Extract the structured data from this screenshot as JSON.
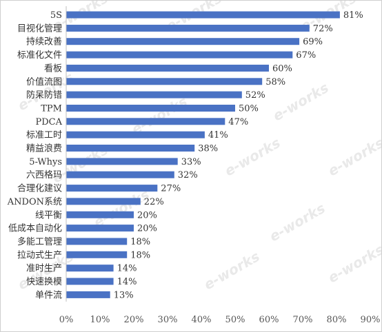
{
  "chart_data": {
    "type": "bar",
    "orientation": "horizontal",
    "title": "",
    "xlabel": "",
    "ylabel": "",
    "categories": [
      "5S",
      "目视化管理",
      "持续改善",
      "标准化文件",
      "看板",
      "价值流图",
      "防呆防错",
      "TPM",
      "PDCA",
      "标准工时",
      "精益浪费",
      "5-Whys",
      "六西格玛",
      "合理化建议",
      "ANDON系统",
      "线平衡",
      "低成本自动化",
      "多能工管理",
      "拉动式生产",
      "准时生产",
      "快速换模",
      "单件流"
    ],
    "values": [
      81,
      72,
      69,
      67,
      60,
      58,
      52,
      50,
      47,
      41,
      38,
      33,
      32,
      27,
      22,
      20,
      20,
      18,
      18,
      14,
      14,
      13
    ],
    "value_labels": [
      "81%",
      "72%",
      "69%",
      "67%",
      "60%",
      "58%",
      "52%",
      "50%",
      "47%",
      "41%",
      "38%",
      "33%",
      "32%",
      "27%",
      "22%",
      "20%",
      "20%",
      "18%",
      "18%",
      "14%",
      "14%",
      "13%"
    ],
    "xlim": [
      0,
      90
    ],
    "x_ticks": [
      "0%",
      "10%",
      "20%",
      "30%",
      "40%",
      "50%",
      "60%",
      "70%",
      "80%",
      "90%"
    ],
    "grid": false,
    "legend": "none",
    "bar_color": "#4a72c4"
  },
  "watermark": "e-works"
}
